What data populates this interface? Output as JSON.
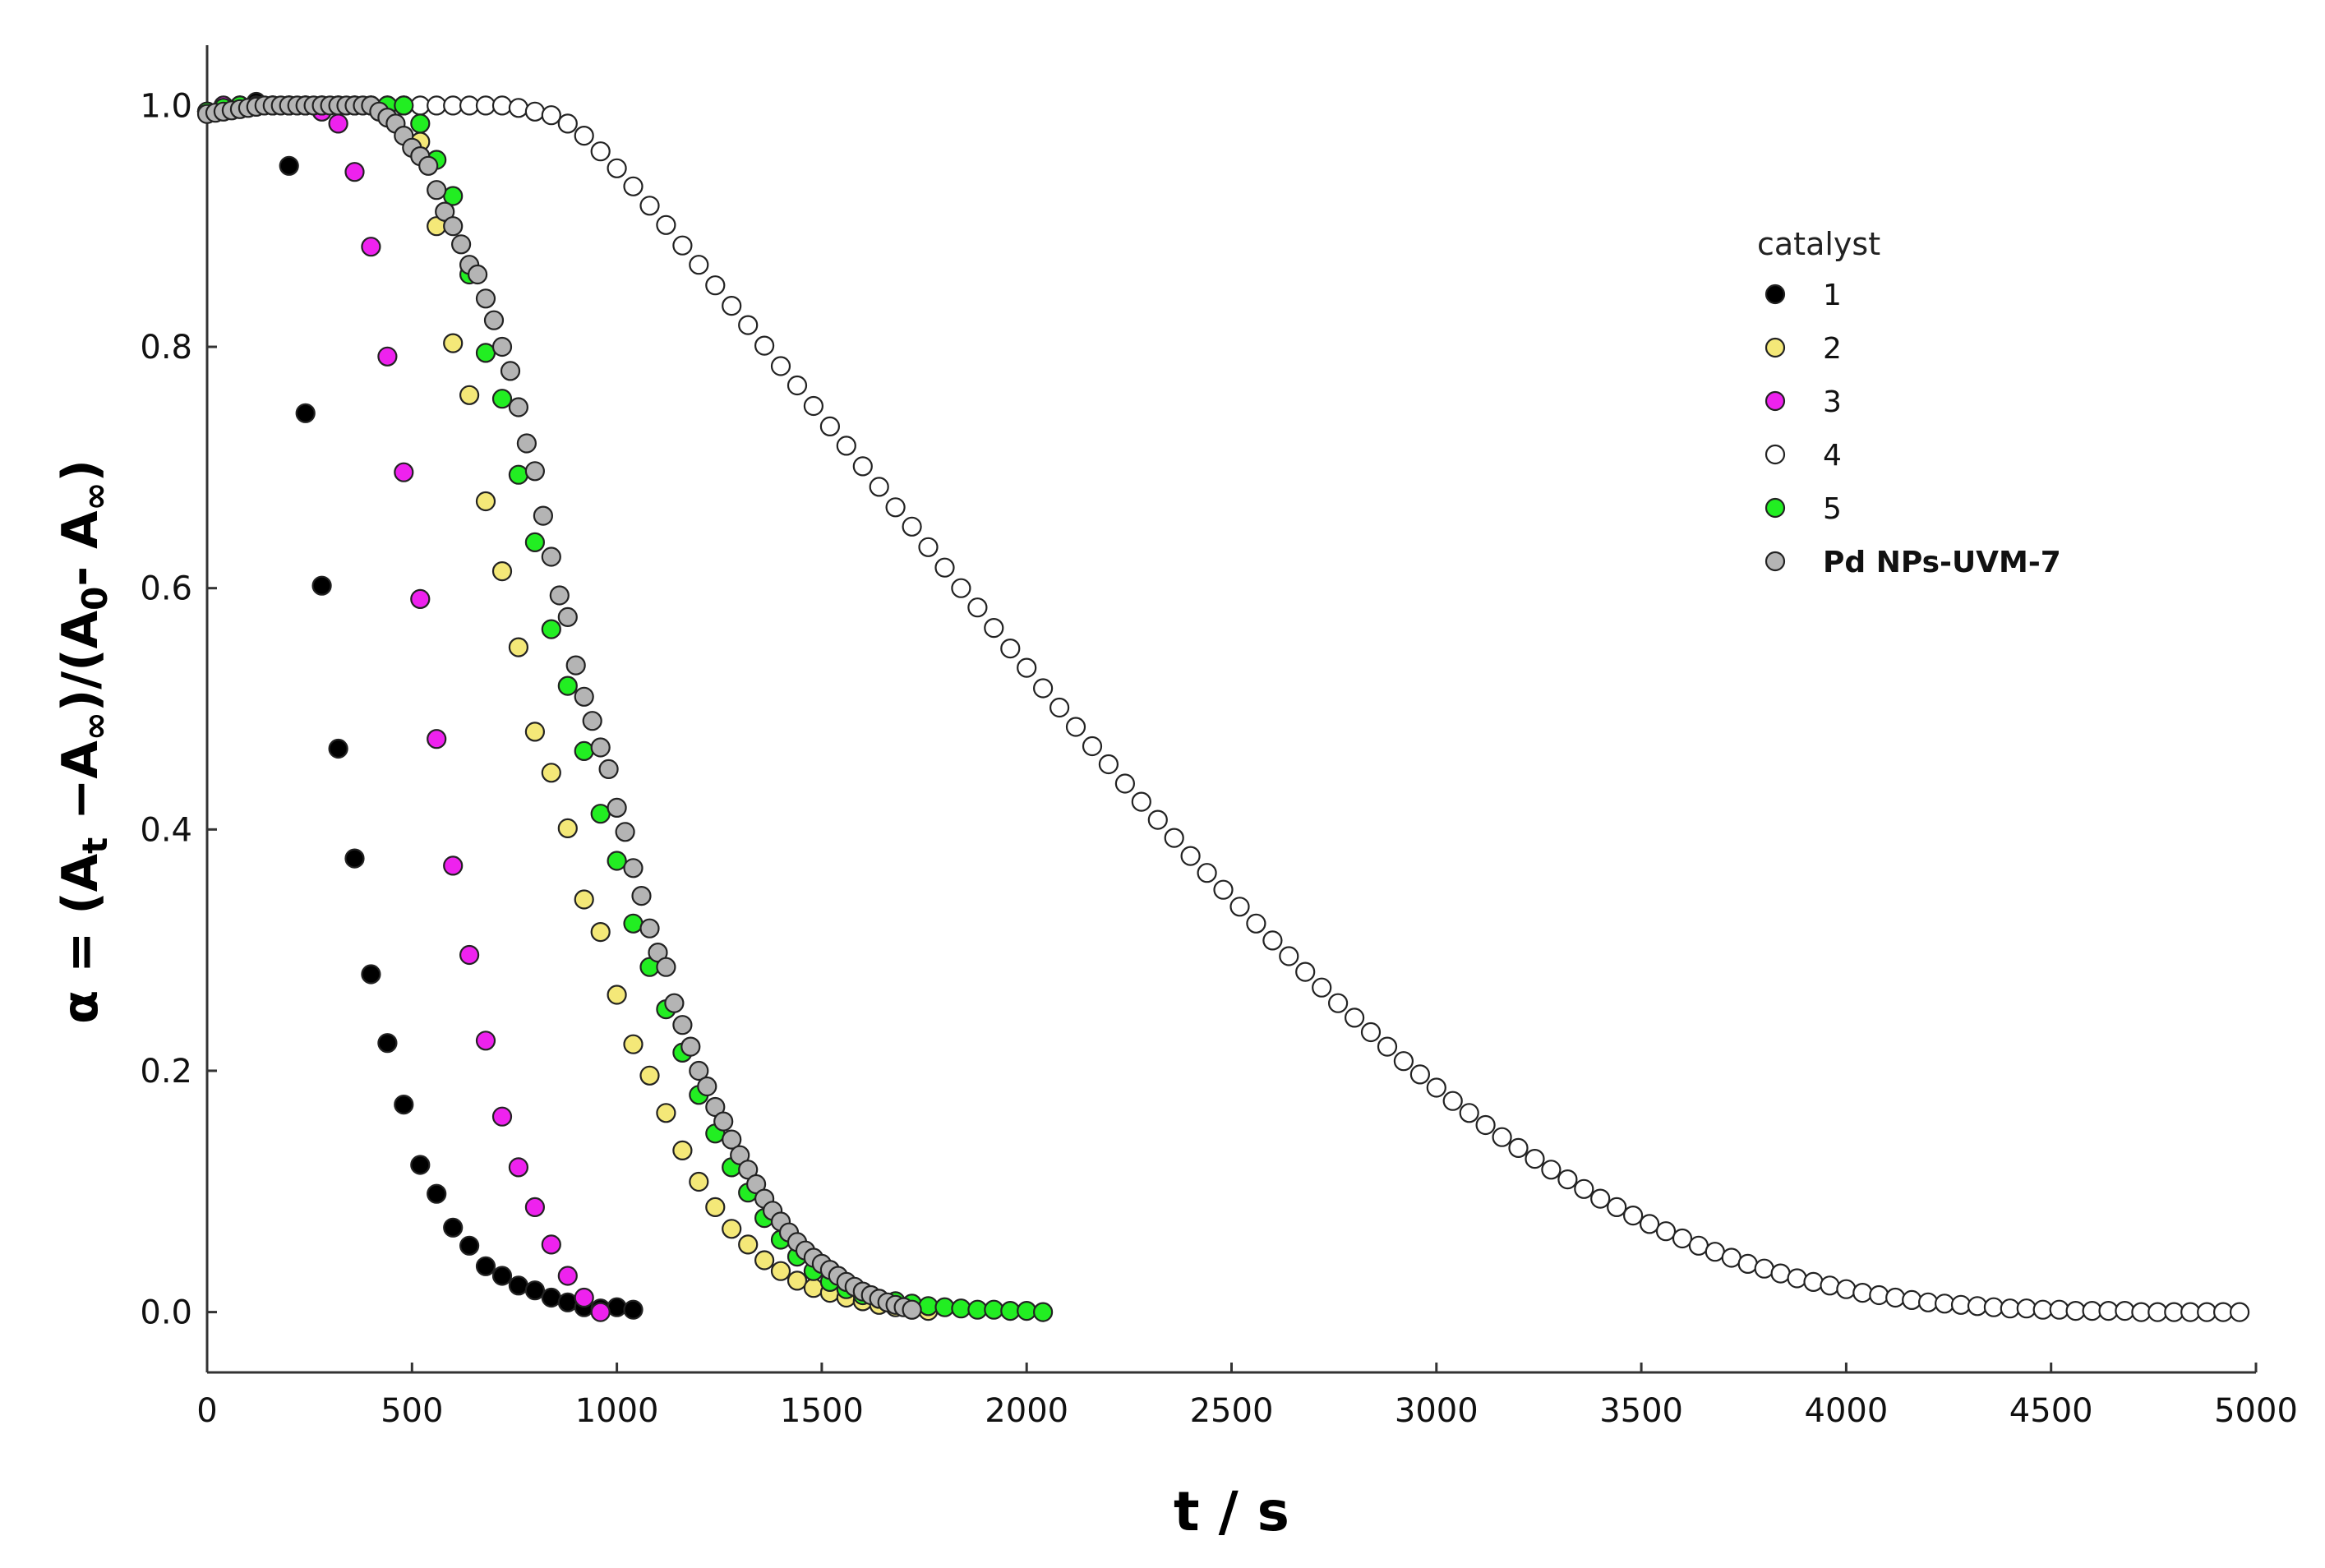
{
  "chart_data": {
    "type": "scatter",
    "title": "",
    "xlabel": "t / s",
    "ylabel_parts": {
      "alpha": "α",
      "eq": " = (A",
      "sub_t": "t",
      "minus1": " −A",
      "sub_inf1": "∞",
      "mid": ")/(A",
      "sub_0": "0",
      "minus2": "- A",
      "sub_inf2": "∞",
      "close": ")"
    },
    "xlim": [
      0,
      5000
    ],
    "ylim": [
      -0.05,
      1.05
    ],
    "x_ticks": [
      0,
      500,
      1000,
      1500,
      2000,
      2500,
      3000,
      3500,
      4000,
      4500,
      5000
    ],
    "y_ticks": [
      0.0,
      0.2,
      0.4,
      0.6,
      0.8,
      1.0
    ],
    "y_tick_labels": [
      "0.0",
      "0.2",
      "0.4",
      "0.6",
      "0.8",
      "1.0"
    ],
    "grid": false,
    "legend": {
      "title": "catalyst",
      "placement": "top-right"
    },
    "series": [
      {
        "name": "1",
        "color": "#000000",
        "bold_label": false,
        "x": [
          0,
          40,
          80,
          120,
          160,
          200,
          240,
          280,
          320,
          360,
          400,
          440,
          480,
          520,
          560,
          600,
          640,
          680,
          720,
          760,
          800,
          840,
          880,
          920,
          960,
          1000,
          1040
        ],
        "y": [
          0.995,
          0.998,
          1.0,
          1.003,
          1.0,
          0.95,
          0.745,
          0.602,
          0.467,
          0.376,
          0.28,
          0.223,
          0.172,
          0.122,
          0.098,
          0.07,
          0.055,
          0.038,
          0.03,
          0.022,
          0.018,
          0.012,
          0.008,
          0.004,
          0.003,
          0.004,
          0.002
        ]
      },
      {
        "name": "2",
        "color": "#f4e878",
        "bold_label": false,
        "x": [
          0,
          40,
          80,
          120,
          160,
          200,
          240,
          280,
          320,
          360,
          400,
          440,
          480,
          520,
          560,
          600,
          640,
          680,
          720,
          760,
          800,
          840,
          880,
          920,
          960,
          1000,
          1040,
          1080,
          1120,
          1160,
          1200,
          1240,
          1280,
          1320,
          1360,
          1400,
          1440,
          1480,
          1520,
          1560,
          1600,
          1640,
          1680,
          1720,
          1760
        ],
        "y": [
          0.995,
          0.998,
          1.0,
          1.0,
          1.0,
          1.0,
          1.0,
          1.0,
          1.0,
          1.0,
          1.0,
          1.0,
          1.0,
          0.97,
          0.9,
          0.803,
          0.76,
          0.672,
          0.614,
          0.551,
          0.481,
          0.447,
          0.401,
          0.342,
          0.315,
          0.263,
          0.222,
          0.196,
          0.165,
          0.134,
          0.108,
          0.087,
          0.069,
          0.056,
          0.043,
          0.034,
          0.026,
          0.02,
          0.016,
          0.012,
          0.009,
          0.006,
          0.004,
          0.002,
          0.001
        ]
      },
      {
        "name": "3",
        "color": "#ee22ee",
        "bold_label": false,
        "x": [
          0,
          40,
          80,
          120,
          160,
          200,
          240,
          280,
          320,
          360,
          400,
          440,
          480,
          520,
          560,
          600,
          640,
          680,
          720,
          760,
          800,
          840,
          880,
          920,
          960
        ],
        "y": [
          0.995,
          1.0,
          0.998,
          1.0,
          1.0,
          1.0,
          1.0,
          0.995,
          0.985,
          0.945,
          0.883,
          0.792,
          0.696,
          0.591,
          0.475,
          0.37,
          0.296,
          0.225,
          0.162,
          0.12,
          0.087,
          0.056,
          0.03,
          0.012,
          0.0
        ]
      },
      {
        "name": "4",
        "color": "#ffffff",
        "bold_label": false,
        "x": [
          0,
          40,
          80,
          120,
          160,
          200,
          240,
          280,
          320,
          360,
          400,
          440,
          480,
          520,
          560,
          600,
          640,
          680,
          720,
          760,
          800,
          840,
          880,
          920,
          960,
          1000,
          1040,
          1080,
          1120,
          1160,
          1200,
          1240,
          1280,
          1320,
          1360,
          1400,
          1440,
          1480,
          1520,
          1560,
          1600,
          1640,
          1680,
          1720,
          1760,
          1800,
          1840,
          1880,
          1920,
          1960,
          2000,
          2040,
          2080,
          2120,
          2160,
          2200,
          2240,
          2280,
          2320,
          2360,
          2400,
          2440,
          2480,
          2520,
          2560,
          2600,
          2640,
          2680,
          2720,
          2760,
          2800,
          2840,
          2880,
          2920,
          2960,
          3000,
          3040,
          3080,
          3120,
          3160,
          3200,
          3240,
          3280,
          3320,
          3360,
          3400,
          3440,
          3480,
          3520,
          3560,
          3600,
          3640,
          3680,
          3720,
          3760,
          3800,
          3840,
          3880,
          3920,
          3960,
          4000,
          4040,
          4080,
          4120,
          4160,
          4200,
          4240,
          4280,
          4320,
          4360,
          4400,
          4440,
          4480,
          4520,
          4560,
          4600,
          4640,
          4680,
          4720,
          4760,
          4800,
          4840,
          4880,
          4920,
          4960
        ],
        "y": [
          0.995,
          0.998,
          1.0,
          1.0,
          1.0,
          1.0,
          1.0,
          1.0,
          1.0,
          1.0,
          1.0,
          1.0,
          1.0,
          1.0,
          1.0,
          1.0,
          1.0,
          1.0,
          1.0,
          0.998,
          0.995,
          0.992,
          0.985,
          0.975,
          0.962,
          0.948,
          0.933,
          0.917,
          0.901,
          0.884,
          0.868,
          0.851,
          0.834,
          0.818,
          0.801,
          0.784,
          0.768,
          0.751,
          0.734,
          0.718,
          0.701,
          0.684,
          0.667,
          0.651,
          0.634,
          0.617,
          0.6,
          0.584,
          0.567,
          0.55,
          0.534,
          0.517,
          0.501,
          0.485,
          0.469,
          0.454,
          0.438,
          0.423,
          0.408,
          0.393,
          0.378,
          0.364,
          0.35,
          0.336,
          0.322,
          0.308,
          0.295,
          0.282,
          0.269,
          0.256,
          0.244,
          0.232,
          0.22,
          0.208,
          0.197,
          0.186,
          0.175,
          0.165,
          0.155,
          0.145,
          0.136,
          0.127,
          0.118,
          0.11,
          0.102,
          0.094,
          0.087,
          0.08,
          0.073,
          0.067,
          0.061,
          0.055,
          0.05,
          0.045,
          0.04,
          0.036,
          0.032,
          0.028,
          0.025,
          0.022,
          0.019,
          0.016,
          0.014,
          0.012,
          0.01,
          0.008,
          0.007,
          0.006,
          0.005,
          0.004,
          0.003,
          0.003,
          0.002,
          0.002,
          0.001,
          0.001,
          0.001,
          0.001,
          0.0,
          0.0,
          0.0,
          0.0,
          0.0,
          0.0,
          0.0
        ]
      },
      {
        "name": "5",
        "color": "#22ee22",
        "bold_label": false,
        "x": [
          0,
          40,
          80,
          120,
          160,
          200,
          240,
          280,
          320,
          360,
          400,
          440,
          480,
          520,
          560,
          600,
          640,
          680,
          720,
          760,
          800,
          840,
          880,
          920,
          960,
          1000,
          1040,
          1080,
          1120,
          1160,
          1200,
          1240,
          1280,
          1320,
          1360,
          1400,
          1440,
          1480,
          1520,
          1560,
          1600,
          1640,
          1680,
          1720,
          1760,
          1800,
          1840,
          1880,
          1920,
          1960,
          2000,
          2040
        ],
        "y": [
          0.995,
          0.998,
          1.0,
          1.0,
          1.0,
          1.0,
          1.0,
          1.0,
          1.0,
          1.0,
          1.0,
          1.0,
          1.0,
          0.985,
          0.955,
          0.925,
          0.86,
          0.795,
          0.757,
          0.694,
          0.638,
          0.566,
          0.519,
          0.465,
          0.413,
          0.374,
          0.322,
          0.286,
          0.251,
          0.215,
          0.18,
          0.148,
          0.12,
          0.099,
          0.078,
          0.06,
          0.046,
          0.034,
          0.025,
          0.019,
          0.014,
          0.011,
          0.009,
          0.007,
          0.005,
          0.004,
          0.003,
          0.002,
          0.002,
          0.001,
          0.001,
          0.0
        ]
      },
      {
        "name": "Pd NPs-UVM-7",
        "color": "#b4b4b4",
        "bold_label": true,
        "x": [
          0,
          20,
          40,
          60,
          80,
          100,
          120,
          140,
          160,
          180,
          200,
          220,
          240,
          260,
          280,
          300,
          320,
          340,
          360,
          380,
          400,
          420,
          440,
          460,
          480,
          500,
          520,
          540,
          560,
          580,
          600,
          620,
          640,
          660,
          680,
          700,
          720,
          740,
          760,
          780,
          800,
          820,
          840,
          860,
          880,
          900,
          920,
          940,
          960,
          980,
          1000,
          1020,
          1040,
          1060,
          1080,
          1100,
          1120,
          1140,
          1160,
          1180,
          1200,
          1220,
          1240,
          1260,
          1280,
          1300,
          1320,
          1340,
          1360,
          1380,
          1400,
          1420,
          1440,
          1460,
          1480,
          1500,
          1520,
          1540,
          1560,
          1580,
          1600,
          1620,
          1640,
          1660,
          1680,
          1700,
          1720
        ],
        "y": [
          0.993,
          0.994,
          0.995,
          0.996,
          0.997,
          0.998,
          0.999,
          1.0,
          1.0,
          1.0,
          1.0,
          1.0,
          1.0,
          1.0,
          1.0,
          1.0,
          1.0,
          1.0,
          1.0,
          1.0,
          1.0,
          0.995,
          0.99,
          0.985,
          0.975,
          0.965,
          0.958,
          0.95,
          0.93,
          0.912,
          0.9,
          0.885,
          0.868,
          0.86,
          0.84,
          0.822,
          0.8,
          0.78,
          0.75,
          0.72,
          0.697,
          0.66,
          0.626,
          0.594,
          0.576,
          0.536,
          0.51,
          0.49,
          0.468,
          0.45,
          0.418,
          0.398,
          0.368,
          0.345,
          0.318,
          0.298,
          0.286,
          0.256,
          0.238,
          0.22,
          0.2,
          0.187,
          0.17,
          0.158,
          0.143,
          0.13,
          0.118,
          0.106,
          0.094,
          0.084,
          0.075,
          0.066,
          0.058,
          0.051,
          0.045,
          0.04,
          0.035,
          0.03,
          0.025,
          0.021,
          0.017,
          0.014,
          0.011,
          0.008,
          0.006,
          0.004,
          0.002
        ]
      }
    ]
  }
}
